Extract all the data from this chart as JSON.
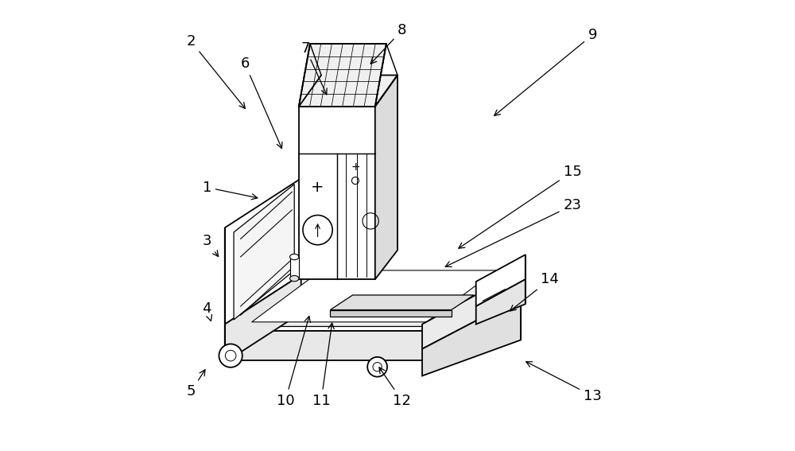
{
  "background_color": "#ffffff",
  "line_color": "#000000",
  "line_width": 1.3,
  "label_fontsize": 13,
  "fig_width": 10.0,
  "fig_height": 5.67,
  "annotations": {
    "1": {
      "lp": [
        0.075,
        0.415
      ],
      "tp": [
        0.195,
        0.44
      ]
    },
    "2": {
      "lp": [
        0.04,
        0.09
      ],
      "tp": [
        0.165,
        0.245
      ]
    },
    "3": {
      "lp": [
        0.075,
        0.535
      ],
      "tp": [
        0.105,
        0.575
      ]
    },
    "4": {
      "lp": [
        0.075,
        0.685
      ],
      "tp": [
        0.085,
        0.715
      ]
    },
    "5": {
      "lp": [
        0.04,
        0.87
      ],
      "tp": [
        0.075,
        0.815
      ]
    },
    "6": {
      "lp": [
        0.16,
        0.14
      ],
      "tp": [
        0.245,
        0.335
      ]
    },
    "7": {
      "lp": [
        0.295,
        0.105
      ],
      "tp": [
        0.345,
        0.215
      ]
    },
    "8": {
      "lp": [
        0.51,
        0.065
      ],
      "tp": [
        0.435,
        0.145
      ]
    },
    "9": {
      "lp": [
        0.935,
        0.075
      ],
      "tp": [
        0.71,
        0.26
      ]
    },
    "10": {
      "lp": [
        0.25,
        0.89
      ],
      "tp": [
        0.305,
        0.695
      ]
    },
    "11": {
      "lp": [
        0.33,
        0.89
      ],
      "tp": [
        0.355,
        0.71
      ]
    },
    "12": {
      "lp": [
        0.51,
        0.89
      ],
      "tp": [
        0.455,
        0.81
      ]
    },
    "13": {
      "lp": [
        0.935,
        0.88
      ],
      "tp": [
        0.78,
        0.8
      ]
    },
    "14": {
      "lp": [
        0.84,
        0.62
      ],
      "tp": [
        0.745,
        0.695
      ]
    },
    "15": {
      "lp": [
        0.89,
        0.38
      ],
      "tp": [
        0.63,
        0.555
      ]
    },
    "23": {
      "lp": [
        0.89,
        0.455
      ],
      "tp": [
        0.6,
        0.595
      ]
    }
  }
}
